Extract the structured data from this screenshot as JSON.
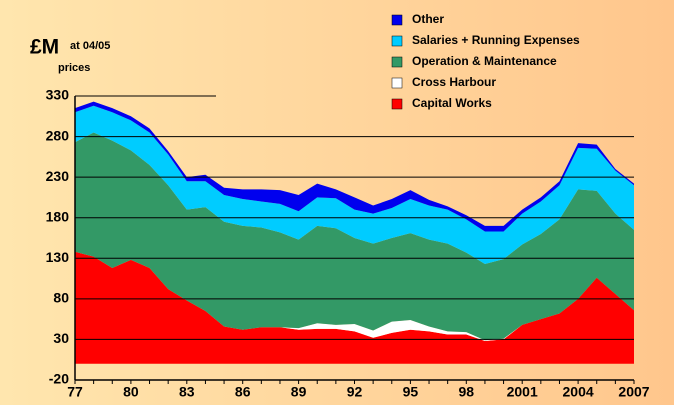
{
  "chart_data": {
    "type": "stacked_area",
    "title": "£M",
    "subtitle_lines": [
      "at 04/05",
      "prices"
    ],
    "categories": [
      "77",
      null,
      null,
      "80",
      null,
      null,
      "83",
      null,
      null,
      "86",
      null,
      null,
      "89",
      null,
      null,
      "92",
      null,
      null,
      "95",
      null,
      null,
      "98",
      null,
      null,
      "2001",
      null,
      null,
      "2004",
      null,
      null,
      "2007"
    ],
    "series": [
      {
        "name": "Capital Works",
        "color": "#ff0000",
        "values": [
          138,
          132,
          118,
          128,
          118,
          92,
          78,
          65,
          46,
          42,
          45,
          45,
          42,
          43,
          43,
          40,
          32,
          38,
          42,
          40,
          36,
          36,
          28,
          30,
          48,
          55,
          62,
          80,
          106,
          86,
          66
        ]
      },
      {
        "name": "Cross Harbour",
        "color": "#ffffff",
        "values": [
          0,
          0,
          0,
          0,
          0,
          0,
          0,
          0,
          0,
          0,
          0,
          0,
          2,
          7,
          5,
          9,
          9,
          14,
          12,
          6,
          4,
          3,
          1,
          1,
          0,
          0,
          0,
          0,
          0,
          0,
          0
        ]
      },
      {
        "name": "Operation & Maintenance",
        "color": "#339966",
        "values": [
          135,
          153,
          157,
          135,
          127,
          128,
          112,
          128,
          129,
          128,
          123,
          117,
          109,
          120,
          119,
          106,
          107,
          103,
          107,
          107,
          108,
          98,
          94,
          98,
          99,
          105,
          116,
          135,
          107,
          99,
          99
        ]
      },
      {
        "name": "Salaries + Running Expenses",
        "color": "#00ccff",
        "values": [
          37,
          33,
          35,
          37,
          40,
          38,
          35,
          32,
          33,
          33,
          32,
          35,
          35,
          35,
          37,
          35,
          37,
          37,
          42,
          42,
          42,
          41,
          40,
          34,
          38,
          40,
          42,
          51,
          52,
          53,
          55
        ]
      },
      {
        "name": "Other",
        "color": "#0000ee",
        "values": [
          5,
          5,
          5,
          5,
          5,
          4,
          5,
          8,
          9,
          12,
          15,
          17,
          20,
          17,
          11,
          15,
          10,
          11,
          11,
          7,
          4,
          5,
          7,
          7,
          5,
          5,
          5,
          6,
          5,
          2,
          2
        ]
      }
    ],
    "ylim": [
      -20,
      330
    ],
    "yticks": [
      -20,
      30,
      80,
      130,
      180,
      230,
      280,
      330
    ],
    "grid": true
  }
}
